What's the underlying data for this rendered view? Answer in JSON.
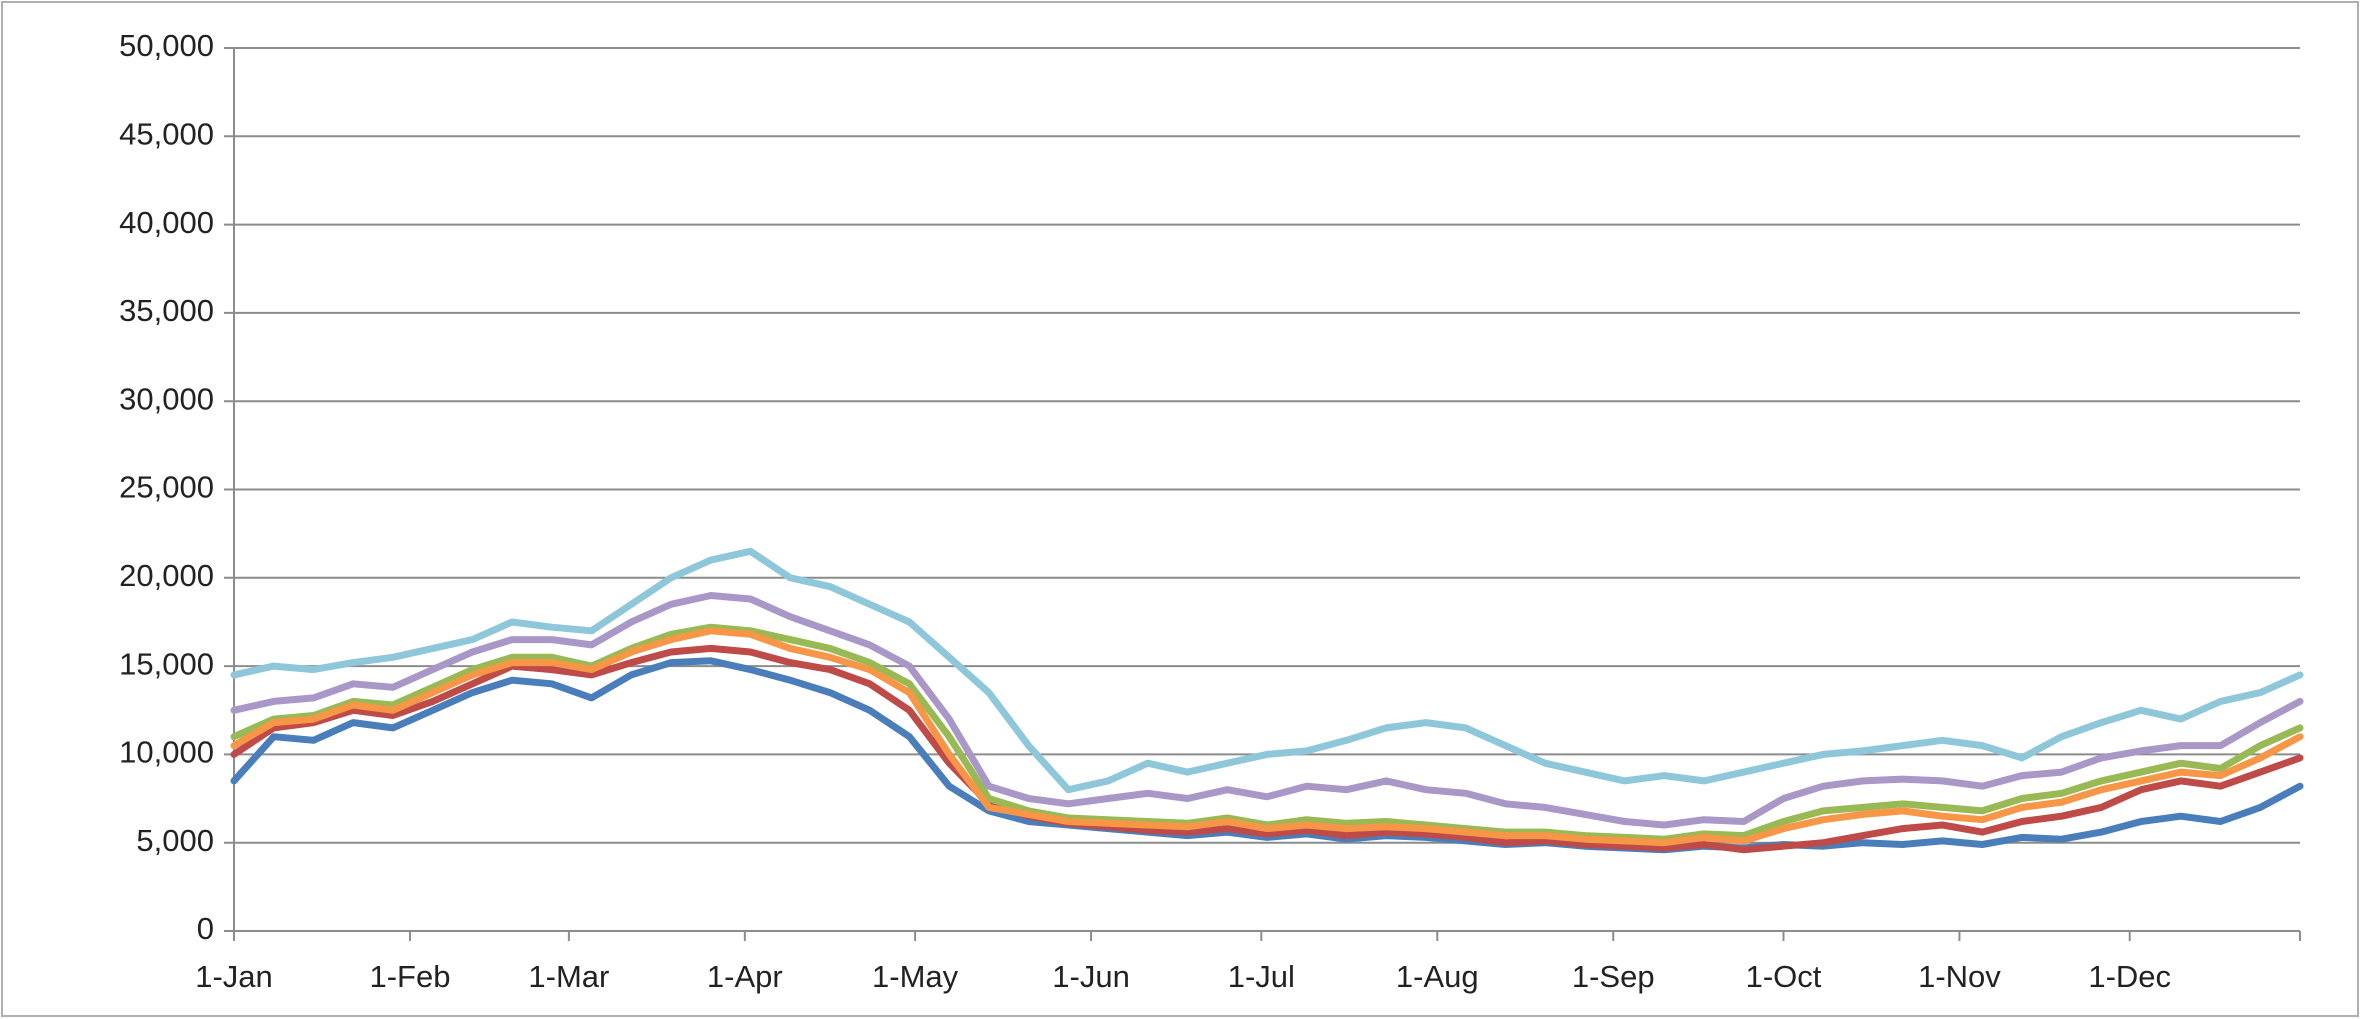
{
  "chart_data": {
    "type": "line",
    "x": [
      0,
      7,
      14,
      21,
      28,
      35,
      42,
      49,
      56,
      63,
      70,
      77,
      84,
      91,
      98,
      105,
      112,
      119,
      126,
      133,
      140,
      147,
      154,
      161,
      168,
      175,
      182,
      189,
      196,
      203,
      210,
      217,
      224,
      231,
      238,
      245,
      252,
      259,
      266,
      273,
      280,
      287,
      294,
      301,
      308,
      315,
      322,
      329,
      336,
      343,
      350,
      357,
      364
    ],
    "xlim": [
      0,
      364
    ],
    "xticks": [
      {
        "value": 0,
        "label": "1-Jan"
      },
      {
        "value": 31,
        "label": "1-Feb"
      },
      {
        "value": 59,
        "label": "1-Mar"
      },
      {
        "value": 90,
        "label": "1-Apr"
      },
      {
        "value": 120,
        "label": "1-May"
      },
      {
        "value": 151,
        "label": "1-Jun"
      },
      {
        "value": 181,
        "label": "1-Jul"
      },
      {
        "value": 212,
        "label": "1-Aug"
      },
      {
        "value": 243,
        "label": "1-Sep"
      },
      {
        "value": 273,
        "label": "1-Oct"
      },
      {
        "value": 304,
        "label": "1-Nov"
      },
      {
        "value": 334,
        "label": "1-Dec"
      }
    ],
    "ylim": [
      0,
      50000
    ],
    "yticks": [
      0,
      {
        "value": 5000,
        "label": "5,000"
      },
      {
        "value": 10000,
        "label": "10,000"
      },
      {
        "value": 15000,
        "label": "15,000"
      },
      {
        "value": 20000,
        "label": "20,000"
      },
      {
        "value": 25000,
        "label": "25,000"
      },
      {
        "value": 30000,
        "label": "30,000"
      },
      {
        "value": 35000,
        "label": "35,000"
      },
      {
        "value": 40000,
        "label": "40,000"
      },
      {
        "value": 45000,
        "label": "45,000"
      },
      {
        "value": 50000,
        "label": "50,000"
      }
    ],
    "grid": true,
    "series": [
      {
        "color": "#4a7ebb",
        "values": [
          8500,
          11000,
          10800,
          11800,
          11500,
          12500,
          13500,
          14200,
          14000,
          13200,
          14500,
          15200,
          15300,
          14800,
          14200,
          13500,
          12500,
          11000,
          8200,
          6800,
          6200,
          6000,
          5800,
          5600,
          5400,
          5600,
          5300,
          5500,
          5200,
          5400,
          5300,
          5100,
          4900,
          5000,
          4800,
          4700,
          4600,
          4800,
          4700,
          4900,
          4800,
          5000,
          4900,
          5100,
          4900,
          5300,
          5200,
          5600,
          6200,
          6500,
          6200,
          7000,
          8200
        ]
      },
      {
        "color": "#be4b48",
        "values": [
          10000,
          11500,
          11800,
          12500,
          12200,
          13000,
          14000,
          15000,
          14800,
          14500,
          15200,
          15800,
          16000,
          15800,
          15200,
          14800,
          14000,
          12500,
          9500,
          7200,
          6500,
          6100,
          5900,
          5700,
          5600,
          5800,
          5500,
          5700,
          5400,
          5600,
          5500,
          5300,
          5000,
          5100,
          4900,
          4800,
          4700,
          4900,
          4600,
          4800,
          5000,
          5400,
          5800,
          6000,
          5600,
          6200,
          6500,
          7000,
          8000,
          8500,
          8200,
          9000,
          9800
        ]
      },
      {
        "color": "#98b954",
        "values": [
          11000,
          12000,
          12200,
          13000,
          12800,
          13800,
          14800,
          15500,
          15500,
          15000,
          16000,
          16800,
          17200,
          17000,
          16500,
          16000,
          15200,
          14000,
          11000,
          7500,
          6800,
          6400,
          6300,
          6200,
          6100,
          6400,
          6000,
          6300,
          6100,
          6200,
          6000,
          5800,
          5600,
          5600,
          5400,
          5300,
          5200,
          5500,
          5400,
          6200,
          6800,
          7000,
          7200,
          7000,
          6800,
          7500,
          7800,
          8500,
          9000,
          9500,
          9200,
          10500,
          11500
        ]
      },
      {
        "color": "#f79646",
        "values": [
          10500,
          11800,
          12000,
          12800,
          12500,
          13500,
          14500,
          15200,
          15200,
          14800,
          15800,
          16500,
          17000,
          16800,
          16000,
          15500,
          14800,
          13500,
          10000,
          7000,
          6600,
          6200,
          6100,
          6000,
          5900,
          6200,
          5800,
          6000,
          5800,
          5900,
          5800,
          5600,
          5400,
          5400,
          5200,
          5100,
          5000,
          5300,
          5100,
          5800,
          6300,
          6600,
          6800,
          6500,
          6300,
          7000,
          7300,
          8000,
          8500,
          9000,
          8800,
          9800,
          11000
        ]
      },
      {
        "color": "#a997c8",
        "values": [
          12500,
          13000,
          13200,
          14000,
          13800,
          14800,
          15800,
          16500,
          16500,
          16200,
          17500,
          18500,
          19000,
          18800,
          17800,
          17000,
          16200,
          15000,
          12000,
          8200,
          7500,
          7200,
          7500,
          7800,
          7500,
          8000,
          7600,
          8200,
          8000,
          8500,
          8000,
          7800,
          7200,
          7000,
          6600,
          6200,
          6000,
          6300,
          6200,
          7500,
          8200,
          8500,
          8600,
          8500,
          8200,
          8800,
          9000,
          9800,
          10200,
          10500,
          10500,
          11800,
          13000
        ]
      },
      {
        "color": "#8fc7da",
        "values": [
          14500,
          15000,
          14800,
          15200,
          15500,
          16000,
          16500,
          17500,
          17200,
          17000,
          18500,
          20000,
          21000,
          21500,
          20000,
          19500,
          18500,
          17500,
          15500,
          13500,
          10500,
          8000,
          8500,
          9500,
          9000,
          9500,
          10000,
          10200,
          10800,
          11500,
          11800,
          11500,
          10500,
          9500,
          9000,
          8500,
          8800,
          8500,
          9000,
          9500,
          10000,
          10200,
          10500,
          10800,
          10500,
          9800,
          11000,
          11800,
          12500,
          12000,
          13000,
          13500,
          14500
        ]
      }
    ]
  }
}
